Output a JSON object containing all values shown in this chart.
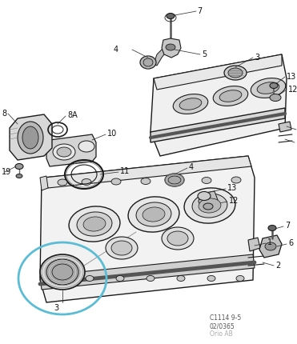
{
  "background_color": "#ffffff",
  "fig_width": 3.71,
  "fig_height": 4.3,
  "dpi": 100,
  "ref_code": "C1114 9-5",
  "ref_num": "02/0365",
  "ref_brand": "Orio AB",
  "label_color": "#111111",
  "line_color": "#1a1a1a",
  "leader_color": "#333333",
  "label_fs": 7.0,
  "ref_fs": 5.5,
  "highlight_color": "#5bbdd4"
}
